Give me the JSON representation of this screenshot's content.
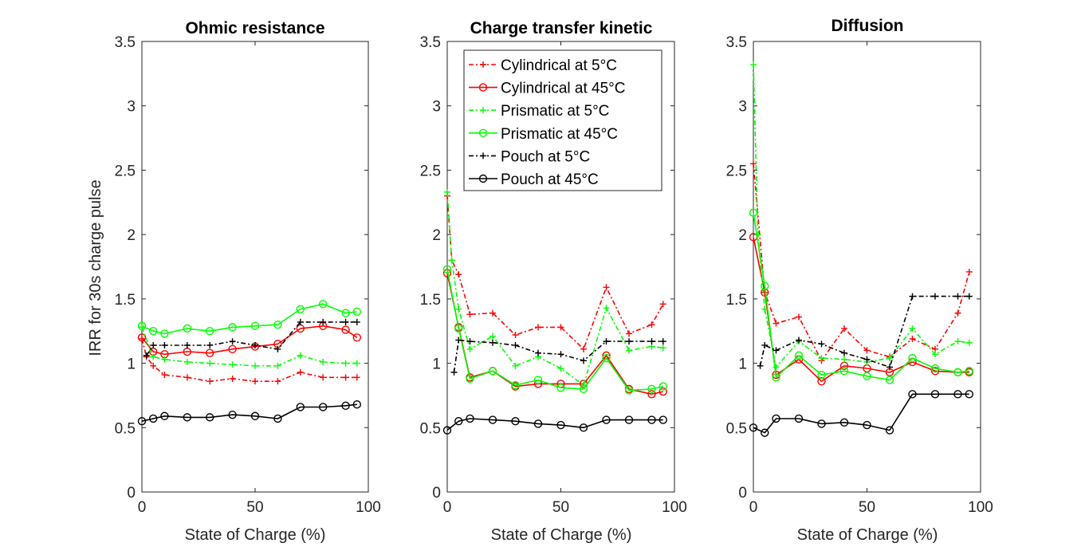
{
  "chart_data": [
    {
      "type": "line",
      "title": "Ohmic resistance",
      "xlabel": "State of Charge (%)",
      "ylabel": "IRR for 30s charge pulse",
      "xlim": [
        0,
        100
      ],
      "ylim": [
        0,
        3.5
      ],
      "xticks": [
        "0",
        "50",
        "100"
      ],
      "yticks": [
        "0",
        "0.5",
        "1",
        "1.5",
        "2",
        "2.5",
        "3",
        "3.5"
      ],
      "grid": false,
      "series": [
        {
          "name": "Cylindrical at 5°C",
          "color": "#ff0000",
          "line": "dashdot",
          "marker": "plus",
          "x": [
            0,
            2,
            5,
            10,
            20,
            30,
            40,
            50,
            60,
            70,
            80,
            90,
            95
          ],
          "y": [
            1.19,
            1.05,
            0.98,
            0.91,
            0.89,
            0.86,
            0.88,
            0.86,
            0.86,
            0.93,
            0.89,
            0.89,
            0.89
          ]
        },
        {
          "name": "Cylindrical at 45°C",
          "color": "#ff0000",
          "line": "solid",
          "marker": "circle",
          "x": [
            0,
            5,
            10,
            20,
            30,
            40,
            50,
            60,
            70,
            80,
            90,
            95
          ],
          "y": [
            1.2,
            1.09,
            1.07,
            1.09,
            1.08,
            1.11,
            1.13,
            1.15,
            1.27,
            1.29,
            1.26,
            1.2
          ]
        },
        {
          "name": "Prismatic at 5°C",
          "color": "#00ff00",
          "line": "dashdot",
          "marker": "plus",
          "x": [
            0,
            5,
            10,
            20,
            30,
            40,
            50,
            60,
            70,
            80,
            90,
            95
          ],
          "y": [
            1.28,
            1.05,
            1.03,
            1.01,
            1.0,
            0.99,
            0.98,
            0.98,
            1.06,
            1.01,
            1.0,
            1.0
          ]
        },
        {
          "name": "Prismatic at 45°C",
          "color": "#00ff00",
          "line": "solid",
          "marker": "circle",
          "x": [
            0,
            5,
            10,
            20,
            30,
            40,
            50,
            60,
            70,
            80,
            90,
            95
          ],
          "y": [
            1.29,
            1.25,
            1.23,
            1.27,
            1.25,
            1.28,
            1.29,
            1.3,
            1.42,
            1.46,
            1.39,
            1.4
          ]
        },
        {
          "name": "Pouch at 5°C",
          "color": "#000000",
          "line": "dashdot",
          "marker": "plus",
          "x": [
            2,
            5,
            10,
            20,
            30,
            40,
            50,
            60,
            70,
            80,
            90,
            95
          ],
          "y": [
            1.06,
            1.14,
            1.14,
            1.14,
            1.14,
            1.17,
            1.14,
            1.11,
            1.32,
            1.32,
            1.32,
            1.32
          ]
        },
        {
          "name": "Pouch at 45°C",
          "color": "#000000",
          "line": "solid",
          "marker": "circle",
          "x": [
            0,
            5,
            10,
            20,
            30,
            40,
            50,
            60,
            70,
            80,
            90,
            95
          ],
          "y": [
            0.55,
            0.57,
            0.59,
            0.58,
            0.58,
            0.6,
            0.59,
            0.57,
            0.66,
            0.66,
            0.67,
            0.68
          ]
        }
      ]
    },
    {
      "type": "line",
      "title": "Charge transfer kinetic",
      "xlabel": "State of Charge (%)",
      "ylabel": "",
      "xlim": [
        0,
        100
      ],
      "ylim": [
        0,
        3.5
      ],
      "xticks": [
        "0",
        "50",
        "100"
      ],
      "yticks": [
        "0",
        "0.5",
        "1",
        "1.5",
        "2",
        "2.5",
        "3",
        "3.5"
      ],
      "grid": false,
      "legend_position": "top-right",
      "series": [
        {
          "name": "Cylindrical at 5°C",
          "color": "#ff0000",
          "line": "dashdot",
          "marker": "plus",
          "x": [
            0,
            2,
            5,
            10,
            20,
            30,
            40,
            50,
            60,
            70,
            80,
            90,
            95
          ],
          "y": [
            2.3,
            1.8,
            1.69,
            1.38,
            1.39,
            1.22,
            1.28,
            1.28,
            1.11,
            1.59,
            1.23,
            1.3,
            1.46
          ]
        },
        {
          "name": "Cylindrical at 45°C",
          "color": "#ff0000",
          "line": "solid",
          "marker": "circle",
          "x": [
            0,
            5,
            10,
            20,
            30,
            40,
            50,
            60,
            70,
            80,
            90,
            95
          ],
          "y": [
            1.7,
            1.28,
            0.89,
            0.94,
            0.82,
            0.84,
            0.84,
            0.84,
            1.06,
            0.8,
            0.76,
            0.78
          ]
        },
        {
          "name": "Prismatic at 5°C",
          "color": "#00ff00",
          "line": "dashdot",
          "marker": "plus",
          "x": [
            0,
            2,
            5,
            10,
            20,
            30,
            40,
            50,
            60,
            70,
            80,
            90,
            95
          ],
          "y": [
            2.33,
            1.8,
            1.42,
            1.11,
            1.21,
            0.98,
            1.05,
            0.96,
            0.83,
            1.43,
            1.1,
            1.13,
            1.12
          ]
        },
        {
          "name": "Prismatic at 45°C",
          "color": "#00ff00",
          "line": "solid",
          "marker": "circle",
          "x": [
            0,
            5,
            10,
            20,
            30,
            40,
            50,
            60,
            70,
            80,
            90,
            95
          ],
          "y": [
            1.73,
            1.27,
            0.88,
            0.94,
            0.83,
            0.87,
            0.81,
            0.8,
            1.04,
            0.79,
            0.8,
            0.82
          ]
        },
        {
          "name": "Pouch at 5°C",
          "color": "#000000",
          "line": "dashdot",
          "marker": "plus",
          "x": [
            3,
            5,
            10,
            20,
            30,
            40,
            50,
            60,
            70,
            80,
            90,
            95
          ],
          "y": [
            0.93,
            1.18,
            1.17,
            1.16,
            1.14,
            1.08,
            1.07,
            1.02,
            1.17,
            1.17,
            1.17,
            1.17
          ]
        },
        {
          "name": "Pouch at 45°C",
          "color": "#000000",
          "line": "solid",
          "marker": "circle",
          "x": [
            0,
            5,
            10,
            20,
            30,
            40,
            50,
            60,
            70,
            80,
            90,
            95
          ],
          "y": [
            0.48,
            0.55,
            0.57,
            0.56,
            0.55,
            0.53,
            0.52,
            0.5,
            0.56,
            0.56,
            0.56,
            0.56
          ]
        }
      ]
    },
    {
      "type": "line",
      "title": "Diffusion",
      "xlabel": "State of Charge (%)",
      "ylabel": "",
      "xlim": [
        0,
        100
      ],
      "ylim": [
        0,
        3.5
      ],
      "xticks": [
        "0",
        "50",
        "100"
      ],
      "yticks": [
        "0",
        "0.5",
        "1",
        "1.5",
        "2",
        "2.5",
        "3",
        "3.5"
      ],
      "grid": false,
      "series": [
        {
          "name": "Cylindrical at 5°C",
          "color": "#ff0000",
          "line": "dashdot",
          "marker": "plus",
          "x": [
            0,
            5,
            10,
            20,
            30,
            40,
            50,
            60,
            70,
            80,
            90,
            95
          ],
          "y": [
            2.55,
            1.55,
            1.31,
            1.36,
            1.02,
            1.27,
            1.1,
            1.05,
            1.19,
            1.11,
            1.39,
            1.71
          ]
        },
        {
          "name": "Cylindrical at 45°C",
          "color": "#ff0000",
          "line": "solid",
          "marker": "circle",
          "x": [
            0,
            5,
            10,
            20,
            30,
            40,
            50,
            60,
            70,
            80,
            90,
            95
          ],
          "y": [
            1.98,
            1.55,
            0.91,
            1.03,
            0.86,
            0.98,
            0.96,
            0.93,
            1.01,
            0.94,
            0.93,
            0.93
          ]
        },
        {
          "name": "Prismatic at 5°C",
          "color": "#00ff00",
          "line": "dashdot",
          "marker": "plus",
          "x": [
            0,
            2,
            5,
            10,
            20,
            30,
            40,
            50,
            60,
            70,
            80,
            90,
            95
          ],
          "y": [
            3.32,
            2.0,
            1.42,
            0.97,
            1.17,
            1.04,
            1.03,
            1.01,
            1.04,
            1.27,
            1.07,
            1.17,
            1.16
          ]
        },
        {
          "name": "Prismatic at 45°C",
          "color": "#00ff00",
          "line": "solid",
          "marker": "circle",
          "x": [
            0,
            5,
            10,
            20,
            30,
            40,
            50,
            60,
            70,
            80,
            90,
            95
          ],
          "y": [
            2.17,
            1.6,
            0.89,
            1.06,
            0.91,
            0.94,
            0.9,
            0.87,
            1.04,
            0.96,
            0.93,
            0.94
          ]
        },
        {
          "name": "Pouch at 5°C",
          "color": "#000000",
          "line": "dashdot",
          "marker": "plus",
          "x": [
            3,
            5,
            10,
            20,
            30,
            40,
            50,
            60,
            70,
            80,
            90,
            95
          ],
          "y": [
            0.98,
            1.14,
            1.1,
            1.18,
            1.15,
            1.08,
            1.03,
            0.97,
            1.52,
            1.52,
            1.52,
            1.52
          ]
        },
        {
          "name": "Pouch at 45°C",
          "color": "#000000",
          "line": "solid",
          "marker": "circle",
          "x": [
            0,
            5,
            10,
            20,
            30,
            40,
            50,
            60,
            70,
            80,
            90,
            95
          ],
          "y": [
            0.5,
            0.46,
            0.57,
            0.57,
            0.53,
            0.54,
            0.52,
            0.48,
            0.76,
            0.76,
            0.76,
            0.76
          ]
        }
      ]
    }
  ]
}
